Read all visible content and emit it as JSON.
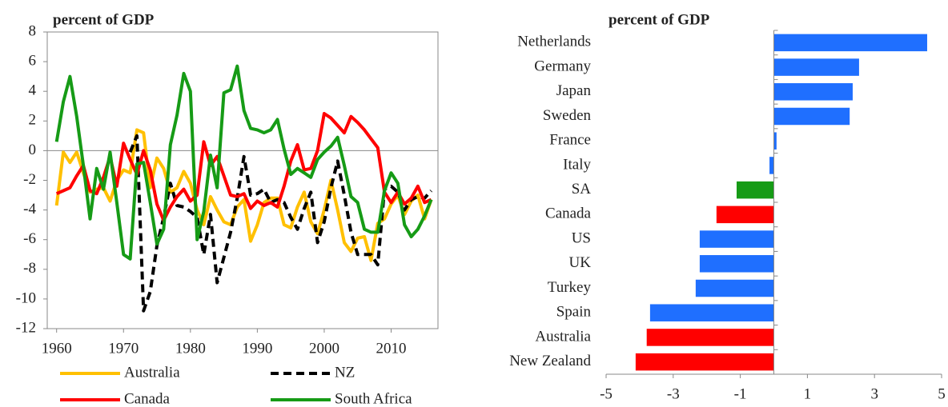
{
  "chart_data": [
    {
      "type": "line",
      "title": "percent of GDP",
      "x": [
        1960,
        1961,
        1962,
        1963,
        1964,
        1965,
        1966,
        1967,
        1968,
        1969,
        1970,
        1971,
        1972,
        1973,
        1974,
        1975,
        1976,
        1977,
        1978,
        1979,
        1980,
        1981,
        1982,
        1983,
        1984,
        1985,
        1986,
        1987,
        1988,
        1989,
        1990,
        1991,
        1992,
        1993,
        1994,
        1995,
        1996,
        1997,
        1998,
        1999,
        2000,
        2001,
        2002,
        2003,
        2004,
        2005,
        2006,
        2007,
        2008,
        2009,
        2010,
        2011,
        2012,
        2013,
        2014,
        2015,
        2016
      ],
      "xlim": [
        1958.6,
        2017
      ],
      "xticks": [
        1960,
        1970,
        1980,
        1990,
        2000,
        2010
      ],
      "ylim": [
        -12,
        8
      ],
      "yticks": [
        -12,
        -10,
        -8,
        -6,
        -4,
        -2,
        0,
        2,
        4,
        6,
        8
      ],
      "series": [
        {
          "name": "Australia",
          "color": "#ffc000",
          "dashed": false,
          "values": [
            -3.7,
            -0.1,
            -0.8,
            -0.1,
            -1.5,
            -2.8,
            -2.6,
            -2.5,
            -3.4,
            -2,
            -1.3,
            -1.5,
            1.4,
            1.2,
            -2.5,
            -0.5,
            -1.2,
            -2.8,
            -2.5,
            -1.4,
            -2.2,
            -4,
            -5,
            -3.1,
            -4,
            -4.8,
            -5,
            -3.8,
            -3.3,
            -6.1,
            -5,
            -3.5,
            -3.2,
            -3.2,
            -5,
            -5.2,
            -3.8,
            -2.8,
            -4.8,
            -5.6,
            -4,
            -2,
            -4,
            -6.2,
            -6.8,
            -5.9,
            -5.8,
            -7.4,
            -4.9,
            -4.6,
            -3.6,
            -3,
            -4.3,
            -3.4,
            -3,
            -4.6,
            -3.3
          ]
        },
        {
          "name": "NZ",
          "color": "#000000",
          "dashed": true,
          "values": [
            null,
            null,
            null,
            null,
            null,
            null,
            null,
            null,
            null,
            null,
            null,
            -0.1,
            1.0,
            -10.8,
            -9.5,
            -6.4,
            -4.5,
            -2.2,
            -3.7,
            -3.8,
            -4.1,
            -4.5,
            -7,
            -4.3,
            -8.9,
            -7.2,
            -5.5,
            -3.2,
            -0.4,
            -3,
            -2.9,
            -2.6,
            -3.5,
            -3.3,
            -3.5,
            -4.5,
            -5.3,
            -3.9,
            -2.8,
            -6.2,
            -4.8,
            -2.5,
            -0.7,
            -3,
            -5.5,
            -7,
            -7,
            -7,
            -7.7,
            -2.6,
            -2.4,
            -2.8,
            -4,
            -3.3,
            -3.1,
            -3.2,
            -2.7
          ]
        },
        {
          "name": "Canada",
          "color": "#ff0000",
          "dashed": false,
          "values": [
            -2.9,
            -2.7,
            -2.5,
            -1.7,
            -1,
            -2.7,
            -2.9,
            -1.8,
            -0.4,
            -2.4,
            0.5,
            -0.6,
            -1.6,
            0,
            -1.3,
            -3.6,
            -4.7,
            -3.8,
            -3.1,
            -2.6,
            -3.4,
            -3,
            0.6,
            -1,
            -0.4,
            -1.7,
            -3,
            -3.1,
            -2.9,
            -3.9,
            -3.4,
            -3.7,
            -3.5,
            -3.8,
            -2.4,
            -0.7,
            0.4,
            -1.3,
            -1.2,
            0,
            2.5,
            2.2,
            1.7,
            1.2,
            2.3,
            1.9,
            1.4,
            0.8,
            0.2,
            -2.8,
            -3.5,
            -2.8,
            -3.6,
            -3.2,
            -2.4,
            -3.5,
            -3.3
          ]
        },
        {
          "name": "South Africa",
          "color": "#169b16",
          "dashed": false,
          "values": [
            0.6,
            3.3,
            5,
            2.3,
            -1,
            -4.6,
            -1.2,
            -2.6,
            -0.1,
            -3.5,
            -7,
            -7.3,
            -0.9,
            -0.8,
            -3.5,
            -6.3,
            -5.3,
            0.4,
            2.4,
            5.2,
            4,
            -6,
            -4.1,
            -0.3,
            -2.5,
            3.9,
            4.1,
            5.7,
            2.7,
            1.5,
            1.4,
            1.2,
            1.4,
            2.1,
            0.1,
            -1.6,
            -1.2,
            -1.5,
            -1.8,
            -0.6,
            -0.1,
            0.3,
            0.9,
            -1,
            -3.1,
            -3.5,
            -5.3,
            -5.5,
            -5.5,
            -2.7,
            -1.5,
            -2.2,
            -5,
            -5.8,
            -5.3,
            -4.4,
            -3.3
          ]
        }
      ]
    },
    {
      "type": "hbar",
      "title": "percent of GDP",
      "categories": [
        "Netherlands",
        "Germany",
        "Japan",
        "Sweden",
        "France",
        "Italy",
        "SA",
        "Canada",
        "US",
        "UK",
        "Turkey",
        "Spain",
        "Australia",
        "New Zealand"
      ],
      "values": [
        4.57,
        2.54,
        2.35,
        2.26,
        0.08,
        -0.13,
        -1.11,
        -1.71,
        -2.21,
        -2.21,
        -2.33,
        -3.69,
        -3.79,
        -4.12
      ],
      "colors": [
        "#1f6fff",
        "#1f6fff",
        "#1f6fff",
        "#1f6fff",
        "#1f6fff",
        "#1f6fff",
        "#169b16",
        "#ff0000",
        "#1f6fff",
        "#1f6fff",
        "#1f6fff",
        "#1f6fff",
        "#ff0000",
        "#ff0000"
      ],
      "xlim": [
        -5,
        5
      ],
      "xticks": [
        -5,
        -3,
        -1,
        1,
        3,
        5
      ]
    }
  ]
}
